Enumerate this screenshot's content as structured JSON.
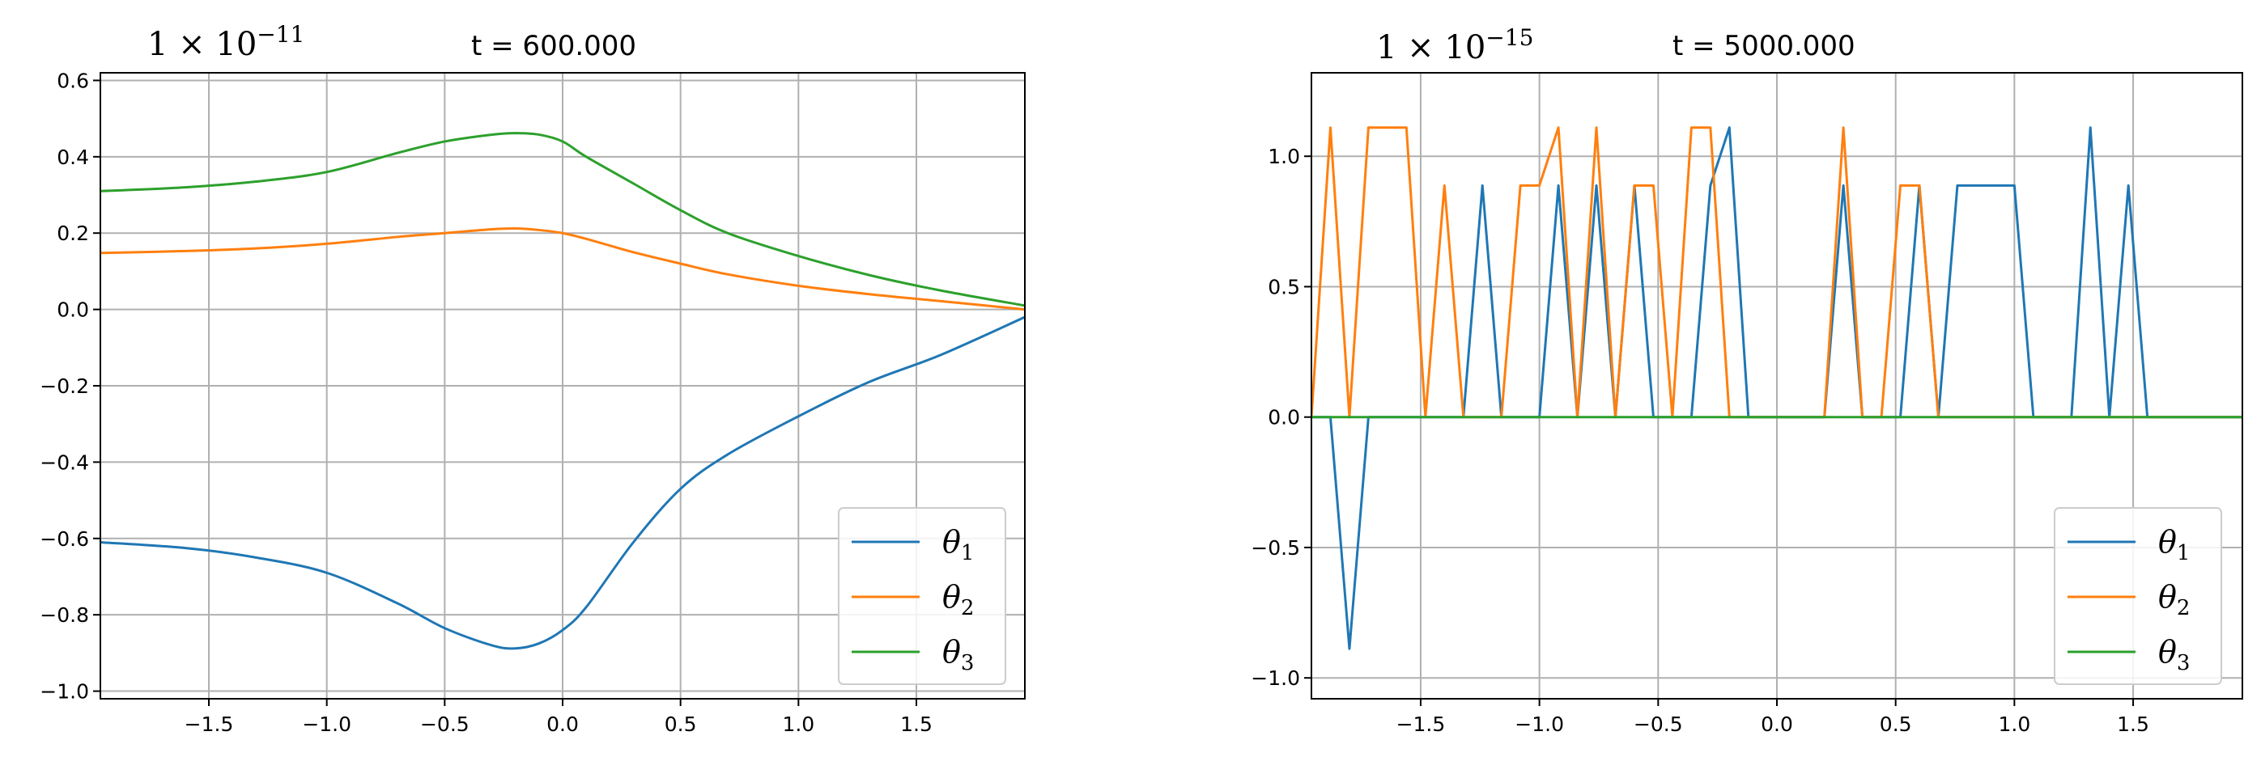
{
  "chart_data": [
    {
      "type": "line",
      "title": "t = 600.000",
      "offset_text": "1 × 10",
      "offset_exponent": "−11",
      "xlabel": "",
      "ylabel": "",
      "xlim": [
        -1.96,
        1.96
      ],
      "ylim": [
        -1.02,
        0.62
      ],
      "x_ticks": [
        -1.5,
        -1.0,
        -0.5,
        0.0,
        0.5,
        1.0,
        1.5
      ],
      "x_tick_labels": [
        "−1.5",
        "−1.0",
        "−0.5",
        "0.0",
        "0.5",
        "1.0",
        "1.5"
      ],
      "y_ticks": [
        -1.0,
        -0.8,
        -0.6,
        -0.4,
        -0.2,
        0.0,
        0.2,
        0.4,
        0.6
      ],
      "y_tick_labels": [
        "−1.0",
        "−0.8",
        "−0.6",
        "−0.4",
        "−0.2",
        "0.0",
        "0.2",
        "0.4",
        "0.6"
      ],
      "grid": true,
      "legend_position": "lower-right",
      "x": [
        -1.96,
        -1.6,
        -1.3,
        -1.0,
        -0.7,
        -0.5,
        -0.3,
        -0.2,
        -0.1,
        0.0,
        0.1,
        0.3,
        0.5,
        0.7,
        1.0,
        1.3,
        1.6,
        1.96
      ],
      "series": [
        {
          "name": "θ",
          "subscript": "1",
          "color": "#1f77b4",
          "values": [
            -0.61,
            -0.625,
            -0.65,
            -0.69,
            -0.77,
            -0.835,
            -0.88,
            -0.888,
            -0.875,
            -0.84,
            -0.78,
            -0.61,
            -0.47,
            -0.38,
            -0.28,
            -0.19,
            -0.12,
            -0.02
          ]
        },
        {
          "name": "θ",
          "subscript": "2",
          "color": "#ff7f0e",
          "values": [
            0.148,
            0.153,
            0.16,
            0.172,
            0.19,
            0.2,
            0.21,
            0.212,
            0.208,
            0.2,
            0.185,
            0.15,
            0.12,
            0.092,
            0.062,
            0.04,
            0.022,
            0.0
          ]
        },
        {
          "name": "θ",
          "subscript": "3",
          "color": "#2ca02c",
          "values": [
            0.31,
            0.32,
            0.335,
            0.36,
            0.41,
            0.44,
            0.458,
            0.462,
            0.458,
            0.44,
            0.4,
            0.33,
            0.26,
            0.2,
            0.14,
            0.09,
            0.05,
            0.01
          ]
        }
      ]
    },
    {
      "type": "line",
      "title": "t = 5000.000",
      "offset_text": "1 × 10",
      "offset_exponent": "−15",
      "xlabel": "",
      "ylabel": "",
      "xlim": [
        -1.96,
        1.96
      ],
      "ylim": [
        -1.08,
        1.32
      ],
      "x_ticks": [
        -1.5,
        -1.0,
        -0.5,
        0.0,
        0.5,
        1.0,
        1.5
      ],
      "x_tick_labels": [
        "−1.5",
        "−1.0",
        "−0.5",
        "0.0",
        "0.5",
        "1.0",
        "1.5"
      ],
      "y_ticks": [
        -1.0,
        -0.5,
        0.0,
        0.5,
        1.0
      ],
      "y_tick_labels": [
        "−1.0",
        "−0.5",
        "0.0",
        "0.5",
        "1.0"
      ],
      "grid": true,
      "legend_position": "lower-right",
      "series": [
        {
          "name": "θ",
          "subscript": "1",
          "color": "#1f77b4",
          "points": [
            [
              -1.96,
              0
            ],
            [
              -1.88,
              0
            ],
            [
              -1.8,
              -0.888
            ],
            [
              -1.72,
              0
            ],
            [
              -1.4,
              0
            ],
            [
              -1.32,
              0
            ],
            [
              -1.24,
              0.888
            ],
            [
              -1.16,
              0
            ],
            [
              -1.0,
              0
            ],
            [
              -0.92,
              0.888
            ],
            [
              -0.84,
              0
            ],
            [
              -0.76,
              0.888
            ],
            [
              -0.68,
              0
            ],
            [
              -0.6,
              0.888
            ],
            [
              -0.52,
              0
            ],
            [
              -0.36,
              0
            ],
            [
              -0.28,
              0.888
            ],
            [
              -0.2,
              1.11
            ],
            [
              -0.12,
              0
            ],
            [
              0.2,
              0
            ],
            [
              0.28,
              0.888
            ],
            [
              0.36,
              0
            ],
            [
              0.52,
              0
            ],
            [
              0.6,
              0.888
            ],
            [
              0.68,
              0
            ],
            [
              0.76,
              0.888
            ],
            [
              1.0,
              0.888
            ],
            [
              1.08,
              0
            ],
            [
              1.24,
              0
            ],
            [
              1.32,
              1.11
            ],
            [
              1.4,
              0
            ],
            [
              1.48,
              0.888
            ],
            [
              1.56,
              0
            ],
            [
              1.96,
              0
            ]
          ]
        },
        {
          "name": "θ",
          "subscript": "2",
          "color": "#ff7f0e",
          "points": [
            [
              -1.96,
              0
            ],
            [
              -1.88,
              1.11
            ],
            [
              -1.8,
              0
            ],
            [
              -1.72,
              1.11
            ],
            [
              -1.56,
              1.11
            ],
            [
              -1.48,
              0
            ],
            [
              -1.4,
              0.888
            ],
            [
              -1.32,
              0
            ],
            [
              -1.16,
              0
            ],
            [
              -1.08,
              0.888
            ],
            [
              -1.0,
              0.888
            ],
            [
              -0.92,
              1.11
            ],
            [
              -0.84,
              0
            ],
            [
              -0.76,
              1.11
            ],
            [
              -0.68,
              0
            ],
            [
              -0.6,
              0.888
            ],
            [
              -0.52,
              0.888
            ],
            [
              -0.44,
              0
            ],
            [
              -0.36,
              1.11
            ],
            [
              -0.28,
              1.11
            ],
            [
              -0.2,
              0
            ],
            [
              0.2,
              0
            ],
            [
              0.28,
              1.11
            ],
            [
              0.36,
              0
            ],
            [
              0.44,
              0
            ],
            [
              0.52,
              0.888
            ],
            [
              0.6,
              0.888
            ],
            [
              0.68,
              0
            ],
            [
              1.96,
              0
            ]
          ]
        },
        {
          "name": "θ",
          "subscript": "3",
          "color": "#2ca02c",
          "points": [
            [
              -1.96,
              0
            ],
            [
              1.96,
              0
            ]
          ]
        }
      ]
    }
  ]
}
